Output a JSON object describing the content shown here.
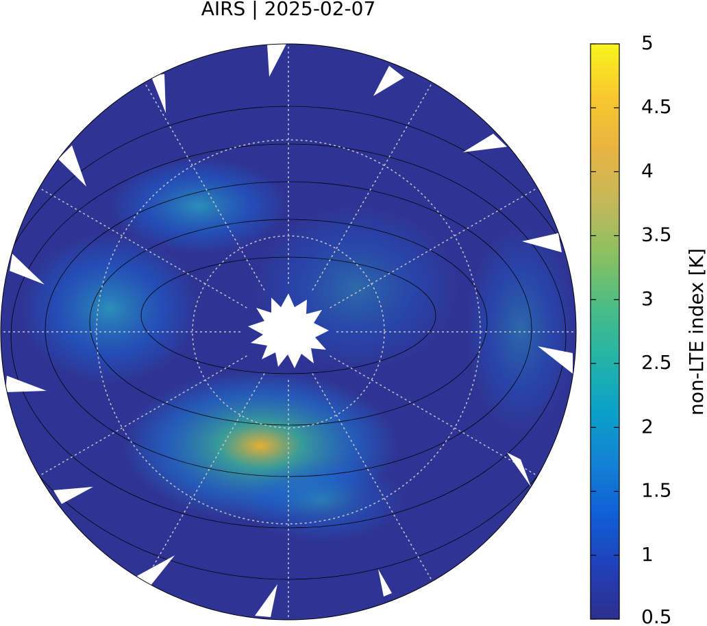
{
  "title": "AIRS | 2025-02-07",
  "colorbar": {
    "label": "non-LTE index [K]",
    "lim": [
      0.5,
      5
    ],
    "ticks": [
      0.5,
      1,
      1.5,
      2,
      2.5,
      3,
      3.5,
      4,
      4.5,
      5
    ]
  }
}
